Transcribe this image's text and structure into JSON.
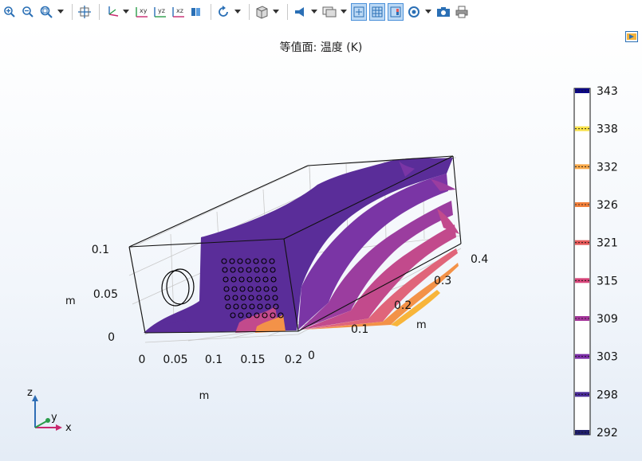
{
  "plot": {
    "title": "等值面: 温度 (K)"
  },
  "colorbar": {
    "ticks": [
      "343",
      "338",
      "332",
      "326",
      "321",
      "315",
      "309",
      "303",
      "298",
      "292"
    ],
    "band_colors": [
      "#0d0887",
      "#f9e24a",
      "#f9a94a",
      "#f3813c",
      "#e55a5a",
      "#d8457a",
      "#a6379c",
      "#7c2ea8",
      "#4a2b98",
      "#1e1d6b"
    ]
  },
  "axes": {
    "x_ticks": [
      "0",
      "0.05",
      "0.1",
      "0.15",
      "0.2"
    ],
    "x_label": "m",
    "y_ticks": [
      "0",
      "0.1",
      "0.2",
      "0.3",
      "0.4"
    ],
    "y_label": "m",
    "z_ticks": [
      "0",
      "0.05",
      "0.1"
    ],
    "z_label": "m"
  },
  "triad": {
    "z": "z",
    "y": "y",
    "x": "x"
  },
  "toolbar": {
    "icons": [
      "zoom-in-icon",
      "zoom-out-icon",
      "zoom-box-icon",
      "zoom-extents-icon",
      "default-view-icon",
      "xy-view-icon",
      "yz-view-icon",
      "xz-view-icon",
      "lights-icon",
      "rotate-icon",
      "render-mode-icon",
      "transparency-icon",
      "scene-light-icon",
      "grid-icon",
      "colorbar-icon",
      "camera-icon",
      "snapshot-icon",
      "print-icon"
    ],
    "view_labels": {
      "xy": "xy",
      "yz": "yz",
      "xz": "xz"
    }
  }
}
